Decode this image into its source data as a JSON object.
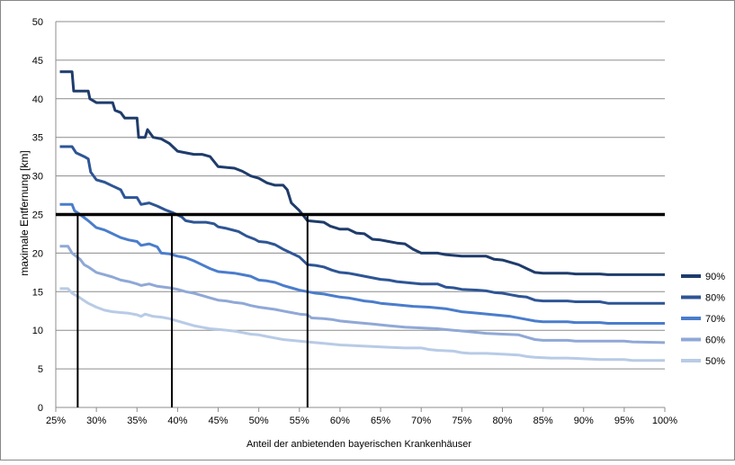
{
  "chart_data": {
    "type": "line",
    "title": "",
    "xlabel": "Anteil der anbietenden bayerischen Krankenhäuser",
    "ylabel": "maximale Entfernung [km]",
    "xlim": [
      25,
      100
    ],
    "ylim": [
      0,
      50
    ],
    "x_ticks": [
      "25%",
      "30%",
      "35%",
      "40%",
      "45%",
      "50%",
      "55%",
      "60%",
      "65%",
      "70%",
      "75%",
      "80%",
      "85%",
      "90%",
      "95%",
      "100%"
    ],
    "y_ticks": [
      "0",
      "5",
      "10",
      "15",
      "20",
      "25",
      "30",
      "35",
      "40",
      "45",
      "50"
    ],
    "grid": "horizontal",
    "legend_position": "right",
    "threshold": 25,
    "drop_lines_x": [
      27.7,
      39.3,
      56.0
    ],
    "series": [
      {
        "name": "90%",
        "color": "#1f3c6b",
        "points": [
          [
            25.5,
            43.5
          ],
          [
            27,
            43.5
          ],
          [
            27.2,
            41
          ],
          [
            29,
            41
          ],
          [
            29.2,
            40
          ],
          [
            30,
            39.5
          ],
          [
            32,
            39.5
          ],
          [
            32.3,
            38.5
          ],
          [
            33,
            38.2
          ],
          [
            33.5,
            37.5
          ],
          [
            35,
            37.5
          ],
          [
            35.2,
            35
          ],
          [
            36,
            35
          ],
          [
            36.3,
            36
          ],
          [
            37,
            35
          ],
          [
            38,
            34.8
          ],
          [
            39,
            34.2
          ],
          [
            40,
            33.2
          ],
          [
            41,
            33
          ],
          [
            42,
            32.8
          ],
          [
            43,
            32.8
          ],
          [
            44,
            32.5
          ],
          [
            45,
            31.2
          ],
          [
            47,
            31
          ],
          [
            48,
            30.6
          ],
          [
            49,
            30
          ],
          [
            50,
            29.7
          ],
          [
            51,
            29.1
          ],
          [
            52,
            28.8
          ],
          [
            53,
            28.8
          ],
          [
            53.5,
            28.2
          ],
          [
            54,
            26.5
          ],
          [
            55,
            25.5
          ],
          [
            56,
            24.2
          ],
          [
            58,
            24
          ],
          [
            58.8,
            23.5
          ],
          [
            60,
            23.1
          ],
          [
            61,
            23.1
          ],
          [
            62,
            22.6
          ],
          [
            63,
            22.5
          ],
          [
            64,
            21.8
          ],
          [
            65,
            21.7
          ],
          [
            66,
            21.5
          ],
          [
            67,
            21.3
          ],
          [
            68,
            21.2
          ],
          [
            69,
            20.5
          ],
          [
            70,
            20
          ],
          [
            72,
            20
          ],
          [
            73,
            19.8
          ],
          [
            75,
            19.6
          ],
          [
            78,
            19.6
          ],
          [
            79,
            19.2
          ],
          [
            80,
            19.1
          ],
          [
            81,
            18.8
          ],
          [
            82,
            18.5
          ],
          [
            83,
            18
          ],
          [
            84,
            17.5
          ],
          [
            85,
            17.4
          ],
          [
            88,
            17.4
          ],
          [
            89,
            17.3
          ],
          [
            92,
            17.3
          ],
          [
            93,
            17.2
          ],
          [
            100,
            17.2
          ]
        ]
      },
      {
        "name": "80%",
        "color": "#2e5595",
        "points": [
          [
            25.5,
            33.8
          ],
          [
            27,
            33.8
          ],
          [
            27.5,
            33
          ],
          [
            28.5,
            32.5
          ],
          [
            29,
            32.2
          ],
          [
            29.3,
            30.5
          ],
          [
            30,
            29.5
          ],
          [
            31,
            29.2
          ],
          [
            32,
            28.7
          ],
          [
            33,
            28.2
          ],
          [
            33.5,
            27.2
          ],
          [
            35,
            27.2
          ],
          [
            35.5,
            26.3
          ],
          [
            36.5,
            26.5
          ],
          [
            37.5,
            26.1
          ],
          [
            38.5,
            25.6
          ],
          [
            39.5,
            25.2
          ],
          [
            40.5,
            24.7
          ],
          [
            41,
            24.2
          ],
          [
            42,
            24
          ],
          [
            43.5,
            24
          ],
          [
            44.5,
            23.8
          ],
          [
            45,
            23.4
          ],
          [
            46,
            23.2
          ],
          [
            47.5,
            22.8
          ],
          [
            48.5,
            22.2
          ],
          [
            49.5,
            21.8
          ],
          [
            50,
            21.5
          ],
          [
            51,
            21.4
          ],
          [
            52,
            21.1
          ],
          [
            53,
            20.5
          ],
          [
            54,
            20
          ],
          [
            55,
            19.5
          ],
          [
            56,
            18.5
          ],
          [
            57,
            18.4
          ],
          [
            58,
            18.2
          ],
          [
            59,
            17.8
          ],
          [
            60,
            17.5
          ],
          [
            61,
            17.4
          ],
          [
            62,
            17.2
          ],
          [
            63,
            17
          ],
          [
            64,
            16.8
          ],
          [
            65,
            16.6
          ],
          [
            66,
            16.5
          ],
          [
            67,
            16.3
          ],
          [
            68,
            16.2
          ],
          [
            69,
            16.1
          ],
          [
            70,
            16
          ],
          [
            72,
            16
          ],
          [
            73,
            15.6
          ],
          [
            74,
            15.5
          ],
          [
            75,
            15.3
          ],
          [
            77,
            15.2
          ],
          [
            78,
            15.1
          ],
          [
            79,
            14.9
          ],
          [
            80,
            14.8
          ],
          [
            81,
            14.6
          ],
          [
            82,
            14.4
          ],
          [
            83,
            14.3
          ],
          [
            84,
            13.9
          ],
          [
            85,
            13.8
          ],
          [
            88,
            13.8
          ],
          [
            89,
            13.7
          ],
          [
            92,
            13.7
          ],
          [
            93,
            13.5
          ],
          [
            100,
            13.5
          ]
        ]
      },
      {
        "name": "70%",
        "color": "#4a7dcc",
        "points": [
          [
            25.5,
            26.3
          ],
          [
            27,
            26.3
          ],
          [
            27.3,
            25.5
          ],
          [
            28,
            25
          ],
          [
            29,
            24.2
          ],
          [
            30,
            23.3
          ],
          [
            31,
            23
          ],
          [
            32,
            22.5
          ],
          [
            33,
            22
          ],
          [
            34,
            21.7
          ],
          [
            35,
            21.5
          ],
          [
            35.5,
            21
          ],
          [
            36.5,
            21.2
          ],
          [
            37.5,
            20.8
          ],
          [
            38,
            20
          ],
          [
            39,
            19.9
          ],
          [
            40,
            19.6
          ],
          [
            41,
            19.4
          ],
          [
            42,
            19
          ],
          [
            43,
            18.5
          ],
          [
            44,
            18
          ],
          [
            45,
            17.6
          ],
          [
            46,
            17.5
          ],
          [
            47,
            17.4
          ],
          [
            48,
            17.2
          ],
          [
            49,
            17
          ],
          [
            50,
            16.5
          ],
          [
            51,
            16.4
          ],
          [
            52,
            16.2
          ],
          [
            53,
            15.8
          ],
          [
            54,
            15.5
          ],
          [
            55,
            15.2
          ],
          [
            56,
            15
          ],
          [
            57,
            14.8
          ],
          [
            58,
            14.7
          ],
          [
            59,
            14.5
          ],
          [
            60,
            14.3
          ],
          [
            61,
            14.2
          ],
          [
            62,
            14
          ],
          [
            63,
            13.8
          ],
          [
            64,
            13.7
          ],
          [
            65,
            13.5
          ],
          [
            67,
            13.3
          ],
          [
            69,
            13.1
          ],
          [
            71,
            13
          ],
          [
            73,
            12.8
          ],
          [
            75,
            12.4
          ],
          [
            77,
            12.2
          ],
          [
            79,
            12
          ],
          [
            81,
            11.8
          ],
          [
            83,
            11.4
          ],
          [
            84,
            11.2
          ],
          [
            85,
            11.1
          ],
          [
            88,
            11.1
          ],
          [
            89,
            11
          ],
          [
            92,
            11
          ],
          [
            93,
            10.9
          ],
          [
            100,
            10.9
          ]
        ]
      },
      {
        "name": "60%",
        "color": "#8fa8d6",
        "points": [
          [
            25.5,
            20.9
          ],
          [
            26.5,
            20.9
          ],
          [
            27,
            20
          ],
          [
            28,
            19.2
          ],
          [
            28.5,
            18.5
          ],
          [
            29,
            18.2
          ],
          [
            30,
            17.5
          ],
          [
            31,
            17.2
          ],
          [
            32,
            16.9
          ],
          [
            33,
            16.5
          ],
          [
            34,
            16.3
          ],
          [
            35,
            16
          ],
          [
            35.5,
            15.8
          ],
          [
            36.5,
            16
          ],
          [
            37.5,
            15.7
          ],
          [
            39,
            15.5
          ],
          [
            40,
            15.3
          ],
          [
            41,
            15
          ],
          [
            42,
            14.8
          ],
          [
            43,
            14.5
          ],
          [
            44,
            14.2
          ],
          [
            45,
            13.9
          ],
          [
            46,
            13.8
          ],
          [
            47,
            13.6
          ],
          [
            48,
            13.5
          ],
          [
            49,
            13.2
          ],
          [
            50,
            13
          ],
          [
            52,
            12.7
          ],
          [
            53,
            12.5
          ],
          [
            54,
            12.3
          ],
          [
            55,
            12.1
          ],
          [
            56,
            12
          ],
          [
            56.5,
            11.6
          ],
          [
            58,
            11.5
          ],
          [
            59,
            11.4
          ],
          [
            60,
            11.2
          ],
          [
            62,
            11
          ],
          [
            64,
            10.8
          ],
          [
            66,
            10.6
          ],
          [
            68,
            10.4
          ],
          [
            70,
            10.3
          ],
          [
            72,
            10.2
          ],
          [
            74,
            10
          ],
          [
            76,
            9.8
          ],
          [
            78,
            9.6
          ],
          [
            80,
            9.5
          ],
          [
            82,
            9.4
          ],
          [
            83,
            9.1
          ],
          [
            84,
            8.8
          ],
          [
            85,
            8.7
          ],
          [
            88,
            8.7
          ],
          [
            89,
            8.6
          ],
          [
            95,
            8.6
          ],
          [
            96,
            8.5
          ],
          [
            100,
            8.4
          ]
        ]
      },
      {
        "name": "50%",
        "color": "#b8cbe6",
        "points": [
          [
            25.5,
            15.4
          ],
          [
            26.5,
            15.4
          ],
          [
            27,
            14.8
          ],
          [
            28,
            14.2
          ],
          [
            29,
            13.5
          ],
          [
            30,
            13
          ],
          [
            31,
            12.6
          ],
          [
            32,
            12.4
          ],
          [
            33,
            12.3
          ],
          [
            34,
            12.2
          ],
          [
            35,
            12
          ],
          [
            35.5,
            11.8
          ],
          [
            36,
            12.1
          ],
          [
            37,
            11.8
          ],
          [
            38,
            11.7
          ],
          [
            39,
            11.5
          ],
          [
            40,
            11.2
          ],
          [
            41,
            10.9
          ],
          [
            42,
            10.6
          ],
          [
            43,
            10.4
          ],
          [
            44,
            10.2
          ],
          [
            45,
            10.1
          ],
          [
            47,
            9.9
          ],
          [
            48,
            9.7
          ],
          [
            49,
            9.5
          ],
          [
            50,
            9.4
          ],
          [
            51,
            9.2
          ],
          [
            52,
            9
          ],
          [
            53,
            8.8
          ],
          [
            54,
            8.7
          ],
          [
            55,
            8.6
          ],
          [
            56,
            8.5
          ],
          [
            58,
            8.3
          ],
          [
            60,
            8.1
          ],
          [
            62,
            8
          ],
          [
            64,
            7.9
          ],
          [
            66,
            7.8
          ],
          [
            68,
            7.7
          ],
          [
            70,
            7.7
          ],
          [
            71,
            7.5
          ],
          [
            72,
            7.4
          ],
          [
            74,
            7.3
          ],
          [
            75,
            7.1
          ],
          [
            76,
            7
          ],
          [
            78,
            7
          ],
          [
            80,
            6.9
          ],
          [
            82,
            6.8
          ],
          [
            83,
            6.6
          ],
          [
            84,
            6.5
          ],
          [
            86,
            6.4
          ],
          [
            88,
            6.4
          ],
          [
            90,
            6.3
          ],
          [
            92,
            6.2
          ],
          [
            95,
            6.2
          ],
          [
            96,
            6.1
          ],
          [
            100,
            6.1
          ]
        ]
      }
    ]
  }
}
